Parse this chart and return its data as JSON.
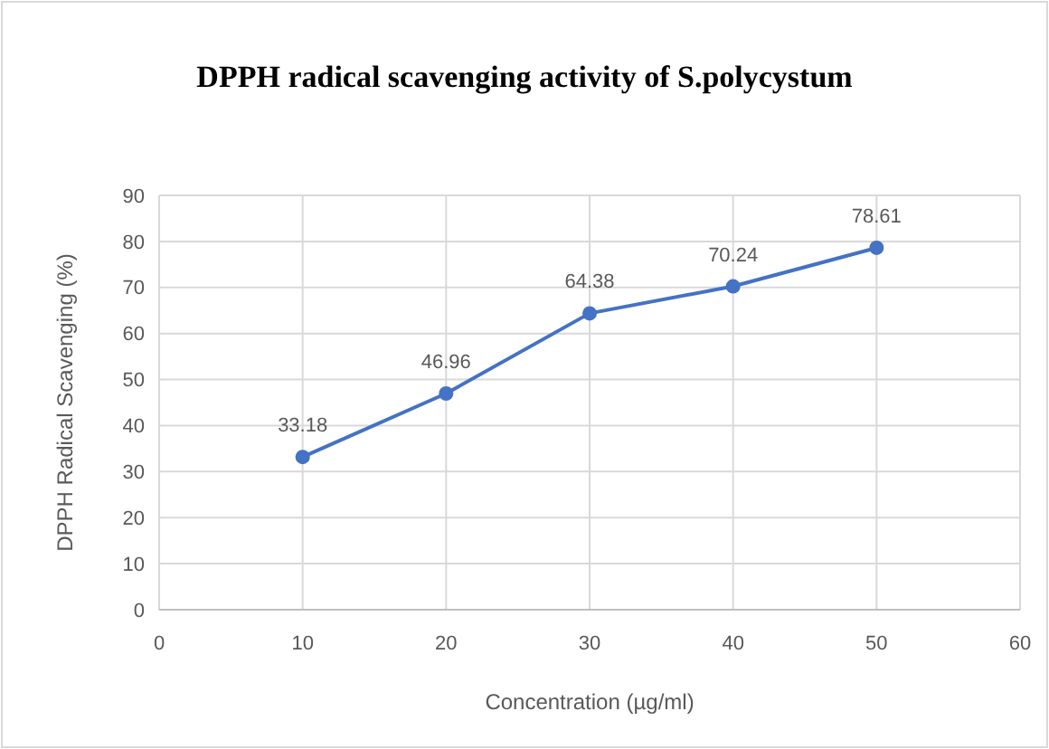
{
  "chart_data": {
    "type": "line",
    "title": "DPPH radical scavenging activity of S.polycystum",
    "xlabel": "Concentration (µg/ml)",
    "ylabel": "DPPH Radical Scavenging (%)",
    "x": [
      10,
      20,
      30,
      40,
      50
    ],
    "series": [
      {
        "color": "#4472c4",
        "values": [
          33.18,
          46.96,
          64.38,
          70.24,
          78.61
        ]
      }
    ],
    "xlim": [
      0,
      60
    ],
    "xticks": [
      0,
      10,
      20,
      30,
      40,
      50,
      60
    ],
    "ylim": [
      0,
      90
    ],
    "yticks": [
      0,
      10,
      20,
      30,
      40,
      50,
      60,
      70,
      80,
      90
    ],
    "grid": true,
    "marker": "circle",
    "line_style": "solid",
    "data_labels": true
  }
}
